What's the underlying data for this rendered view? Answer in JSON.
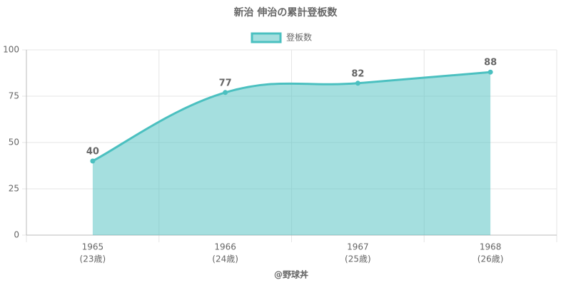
{
  "chart_data": {
    "type": "line",
    "title": "新治 伸治の累計登板数",
    "categories": [
      [
        "1965",
        "(23歳)"
      ],
      [
        "1966",
        "(24歳)"
      ],
      [
        "1967",
        "(25歳)"
      ],
      [
        "1968",
        "(26歳)"
      ]
    ],
    "series": [
      {
        "name": "登板数",
        "color": "#4bc0c0",
        "values": [
          40,
          77,
          82,
          88
        ]
      }
    ],
    "x_label": "@野球丼",
    "ylim": [
      0,
      100
    ],
    "yticks": [
      0,
      25,
      50,
      75,
      100
    ],
    "grid": true,
    "fill": true,
    "legend": "top"
  }
}
